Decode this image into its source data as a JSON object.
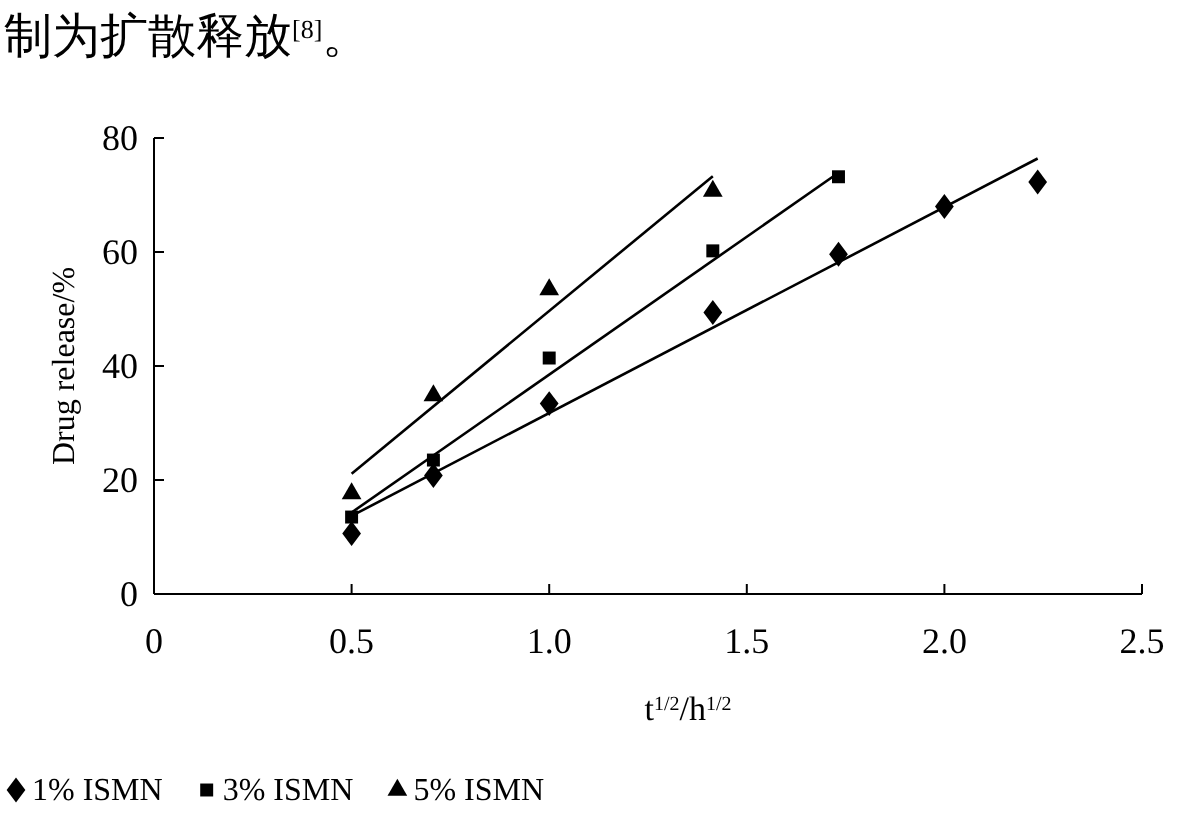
{
  "chart_data": {
    "type": "scatter",
    "annotations": [
      "制为扩散释放$^{[8]}$。"
    ],
    "xlabel": "t$^{1/2}$/h$^{1/2}$",
    "ylabel": "Drug release/%",
    "xlim": [
      0,
      2.5
    ],
    "xticks": [
      0,
      0.5,
      {
        "value": 1,
        "label": "1.0"
      },
      1.5,
      {
        "value": 2,
        "label": "2.0"
      },
      2.5
    ],
    "ylim": [
      0,
      80
    ],
    "yticks": [
      0,
      20,
      40,
      60,
      80
    ],
    "grid": false,
    "legend": "bottom",
    "series": [
      {
        "name": "1% ISMN",
        "color": "#000000",
        "marker": "diamond",
        "x": [
          0.5,
          0.707,
          1.0,
          1.414,
          1.732,
          2.0,
          2.236
        ],
        "values": [
          10.6,
          20.8,
          33.4,
          49.4,
          59.6,
          68.0,
          72.3
        ]
      },
      {
        "name": "3% ISMN",
        "color": "#000000",
        "marker": "square",
        "x": [
          0.5,
          0.707,
          1.0,
          1.414,
          1.732
        ],
        "values": [
          13.5,
          23.5,
          41.4,
          60.2,
          73.2
        ]
      },
      {
        "name": "5% ISMN",
        "color": "#000000",
        "marker": "triangle",
        "x": [
          0.5,
          0.707,
          1.0,
          1.414
        ],
        "values": [
          17.6,
          34.8,
          53.4,
          70.7
        ]
      },
      {
        "type": "line",
        "color": "#000000",
        "marker": "none",
        "line_style": "solid",
        "x": [
          0.5,
          2.236
        ],
        "values": [
          13.7,
          76.4
        ]
      },
      {
        "type": "line",
        "color": "#000000",
        "marker": "none",
        "line_style": "solid",
        "x": [
          0.5,
          1.732
        ],
        "values": [
          14.3,
          73.9
        ]
      },
      {
        "type": "line",
        "color": "#000000",
        "marker": "none",
        "line_style": "solid",
        "x": [
          0.5,
          1.414
        ],
        "values": [
          21.1,
          73.3
        ]
      }
    ]
  }
}
